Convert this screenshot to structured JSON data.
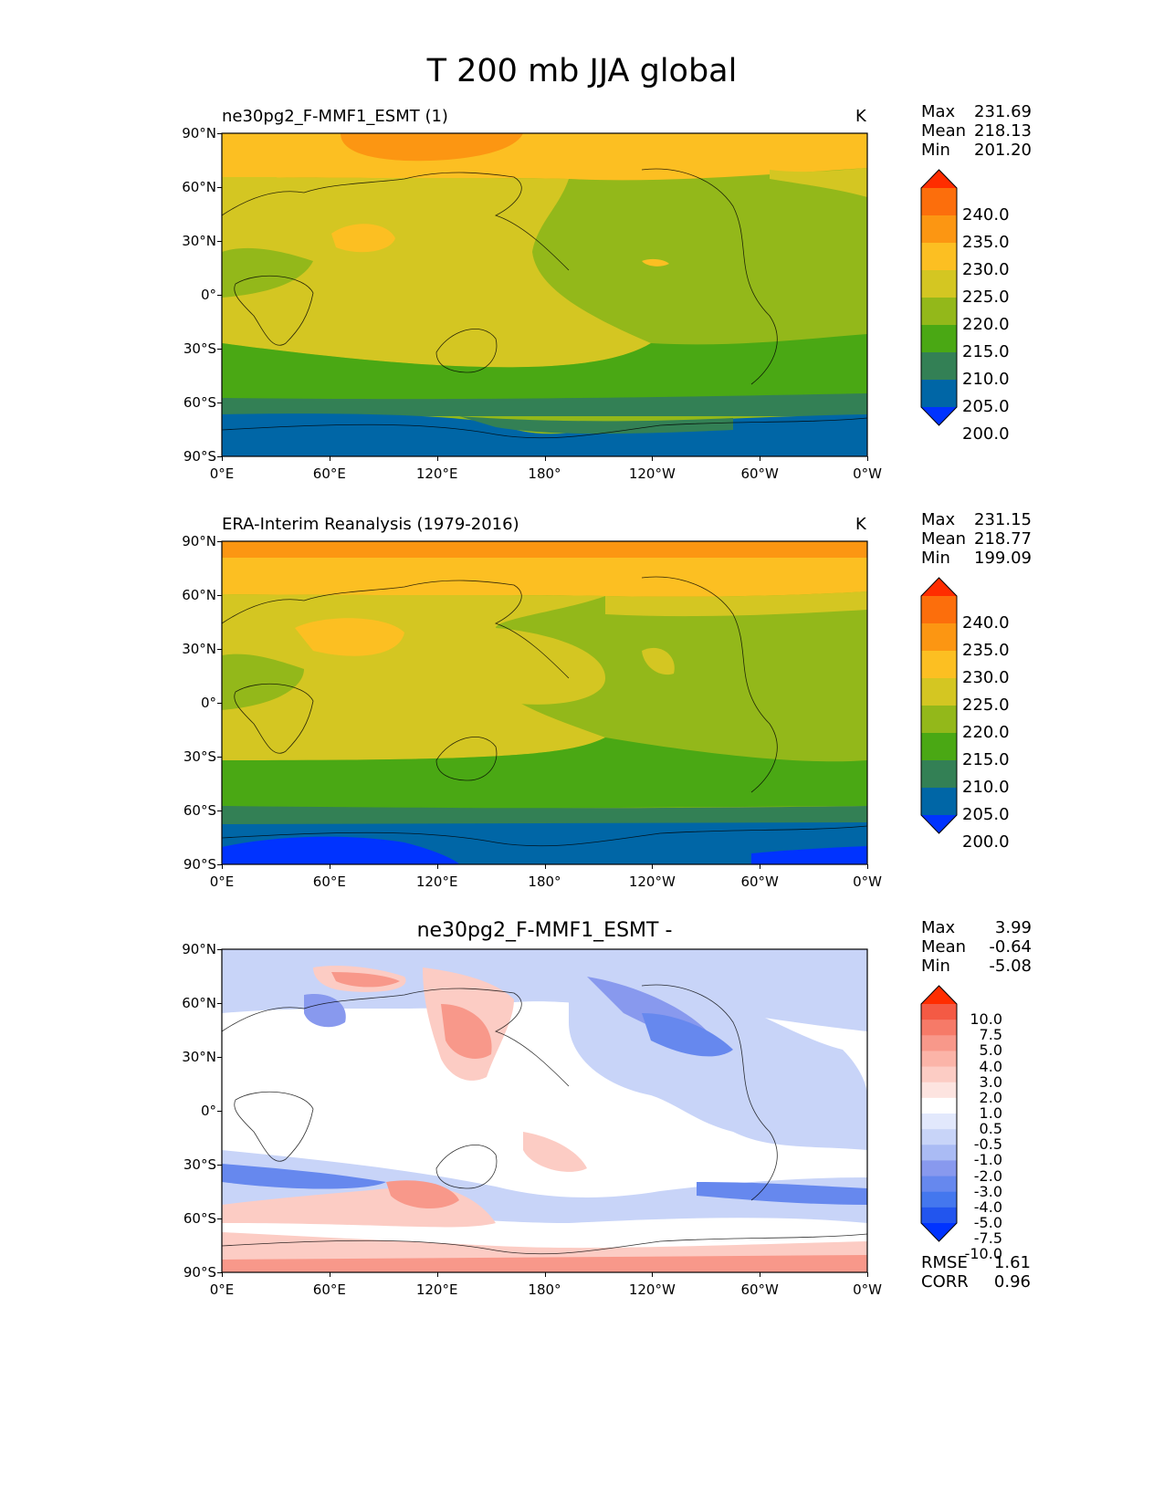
{
  "figure": {
    "title": "T 200 mb JJA global"
  },
  "axes": {
    "lat_ticks": [
      "90°N",
      "60°N",
      "30°N",
      "0°",
      "30°S",
      "60°S",
      "90°S"
    ],
    "lon_ticks": [
      "0°E",
      "60°E",
      "120°E",
      "180°",
      "120°W",
      "60°W",
      "0°W"
    ]
  },
  "panels": [
    {
      "title": "ne30pg2_F-MMF1_ESMT (1)",
      "units": "K",
      "stats": {
        "max_label": "Max",
        "max": "231.69",
        "mean_label": "Mean",
        "mean": "218.13",
        "min_label": "Min",
        "min": "201.20"
      },
      "colorbar_levels": [
        "240.0",
        "235.0",
        "230.0",
        "225.0",
        "220.0",
        "215.0",
        "210.0",
        "205.0",
        "200.0"
      ]
    },
    {
      "title": "ERA-Interim Reanalysis (1979-2016)",
      "units": "K",
      "stats": {
        "max_label": "Max",
        "max": "231.15",
        "mean_label": "Mean",
        "mean": "218.77",
        "min_label": "Min",
        "min": "199.09"
      },
      "colorbar_levels": [
        "240.0",
        "235.0",
        "230.0",
        "225.0",
        "220.0",
        "215.0",
        "210.0",
        "205.0",
        "200.0"
      ]
    },
    {
      "title": "ne30pg2_F-MMF1_ESMT -",
      "stats": {
        "max_label": "Max",
        "max": "3.99",
        "mean_label": "Mean",
        "mean": "-0.64",
        "min_label": "Min",
        "min": "-5.08"
      },
      "colorbar_levels": [
        "10.0",
        "7.5",
        "5.0",
        "4.0",
        "3.0",
        "2.0",
        "1.0",
        "0.5",
        "-0.5",
        "-1.0",
        "-2.0",
        "-3.0",
        "-4.0",
        "-5.0",
        "-7.5",
        "-10.0"
      ],
      "metrics": {
        "rmse_label": "RMSE",
        "rmse": "1.61",
        "corr_label": "CORR",
        "corr": "0.96"
      }
    }
  ],
  "colors": {
    "abs_scale": [
      "#0033ff",
      "#0066a6",
      "#338055",
      "#4aa814",
      "#93b81a",
      "#d4c622",
      "#fcbf22",
      "#fc9612",
      "#fc6e0c",
      "#ff2d00"
    ],
    "diff_scale": [
      "#0033ff",
      "#2255ee",
      "#4477ee",
      "#6688ee",
      "#8899ee",
      "#aabbf4",
      "#c8d4f8",
      "#e2e8fc",
      "#ffffff",
      "#fde4e0",
      "#fcccc4",
      "#fbb4a8",
      "#f8988a",
      "#f67a68",
      "#f45a44",
      "#ff2d00"
    ]
  }
}
